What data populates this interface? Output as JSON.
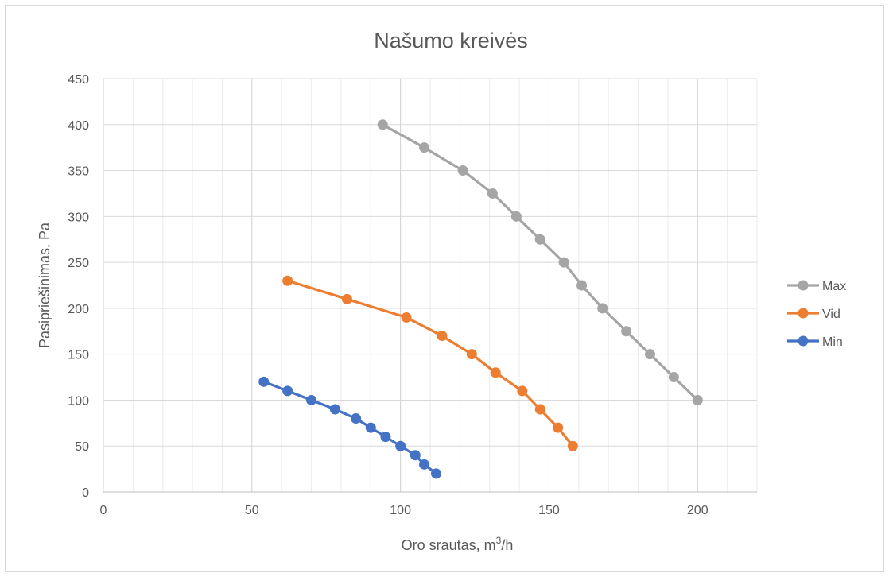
{
  "chart_data": {
    "type": "scatter",
    "title": "Našumo kreivės",
    "xlabel": "Oro srautas, m³/h",
    "xlabel_main": "Oro srautas, m",
    "xlabel_sup": "3",
    "xlabel_tail": "/h",
    "ylabel": "Pasipriešinimas, Pa",
    "xlim": [
      0,
      220
    ],
    "ylim": [
      0,
      450
    ],
    "x_major_ticks": [
      0,
      50,
      100,
      150,
      200
    ],
    "x_minor_step": 10,
    "y_ticks": [
      0,
      50,
      100,
      150,
      200,
      250,
      300,
      350,
      400,
      450
    ],
    "grid": true,
    "legend_position": "right",
    "series": [
      {
        "name": "Max",
        "color": "#a5a5a5",
        "points": [
          [
            94,
            400
          ],
          [
            108,
            375
          ],
          [
            121,
            350
          ],
          [
            131,
            325
          ],
          [
            139,
            300
          ],
          [
            147,
            275
          ],
          [
            155,
            250
          ],
          [
            161,
            225
          ],
          [
            168,
            200
          ],
          [
            176,
            175
          ],
          [
            184,
            150
          ],
          [
            192,
            125
          ],
          [
            200,
            100
          ]
        ]
      },
      {
        "name": "Vid",
        "color": "#ed7d31",
        "points": [
          [
            62,
            230
          ],
          [
            82,
            210
          ],
          [
            102,
            190
          ],
          [
            114,
            170
          ],
          [
            124,
            150
          ],
          [
            132,
            130
          ],
          [
            141,
            110
          ],
          [
            147,
            90
          ],
          [
            153,
            70
          ],
          [
            158,
            50
          ]
        ]
      },
      {
        "name": "Min",
        "color": "#4472c4",
        "points": [
          [
            54,
            120
          ],
          [
            62,
            110
          ],
          [
            70,
            100
          ],
          [
            78,
            90
          ],
          [
            85,
            80
          ],
          [
            90,
            70
          ],
          [
            95,
            60
          ],
          [
            100,
            50
          ],
          [
            105,
            40
          ],
          [
            108,
            30
          ],
          [
            112,
            20
          ]
        ]
      }
    ]
  }
}
